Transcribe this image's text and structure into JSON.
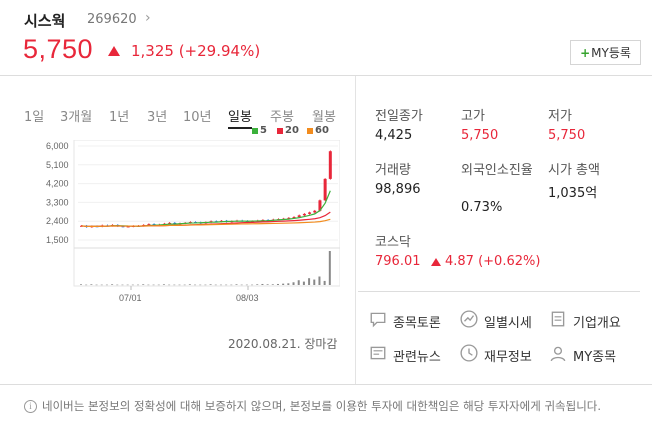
{
  "stock": {
    "name": "시스웍",
    "code": "269620",
    "price": "5,750",
    "change": "1,325 (+29.94%)",
    "my_button": "MY등록"
  },
  "tabs": [
    "1일",
    "3개월",
    "1년",
    "3년",
    "10년",
    "일봉",
    "주봉",
    "월봉"
  ],
  "active_tab": "일봉",
  "legend": [
    {
      "label": "5",
      "color": "#3bb13b"
    },
    {
      "label": "20",
      "color": "#e8273a"
    },
    {
      "label": "60",
      "color": "#f28c1e"
    }
  ],
  "chart_data": {
    "type": "candlestick",
    "y_ticks": [
      "6,000",
      "5,100",
      "4,200",
      "3,300",
      "2,400",
      "1,500"
    ],
    "x_ticks": [
      "07/01",
      "08/03"
    ],
    "ylim": [
      1500,
      6000
    ],
    "close": [
      2180,
      2120,
      2160,
      2150,
      2200,
      2180,
      2220,
      2160,
      2140,
      2150,
      2170,
      2180,
      2220,
      2260,
      2200,
      2240,
      2280,
      2320,
      2260,
      2300,
      2320,
      2360,
      2340,
      2310,
      2350,
      2400,
      2380,
      2420,
      2370,
      2400,
      2430,
      2410,
      2380,
      2400,
      2430,
      2460,
      2440,
      2480,
      2500,
      2520,
      2560,
      2600,
      2680,
      2750,
      2820,
      2900,
      3400,
      4425,
      5750
    ],
    "volume": [
      2,
      1,
      2,
      1,
      1,
      1,
      2,
      1,
      1,
      1,
      1,
      1,
      2,
      1,
      1,
      1,
      2,
      1,
      1,
      1,
      1,
      2,
      1,
      1,
      1,
      2,
      1,
      1,
      1,
      1,
      2,
      1,
      1,
      1,
      2,
      3,
      2,
      2,
      3,
      4,
      5,
      8,
      14,
      10,
      20,
      16,
      25,
      12,
      100
    ],
    "ma5_color": "#3bb13b",
    "ma20_color": "#e8273a",
    "ma60_color": "#f28c1e"
  },
  "chart_date": "2020.08.21. 장마감",
  "stats": [
    {
      "label": "전일종가",
      "value": "4,425",
      "red": false
    },
    {
      "label": "고가",
      "value": "5,750",
      "red": true
    },
    {
      "label": "저가",
      "value": "5,750",
      "red": true
    },
    {
      "label": "거래량",
      "value": "98,896",
      "red": false
    },
    {
      "label": "외국인소진율",
      "value": "0.73%",
      "red": false
    },
    {
      "label": "시가 총액",
      "value": "1,035억",
      "red": false
    }
  ],
  "kosdaq": {
    "label": "코스닥",
    "value": "796.01",
    "change": "4.87 (+0.62%)"
  },
  "links": [
    "종목토론",
    "일별시세",
    "기업개요",
    "관련뉴스",
    "재무정보",
    "MY종목"
  ],
  "notice": "네이버는 본정보의 정확성에 대해 보증하지 않으며, 본정보를 이용한 투자에 대한책임은 해당 투자자에게 귀속됩니다."
}
